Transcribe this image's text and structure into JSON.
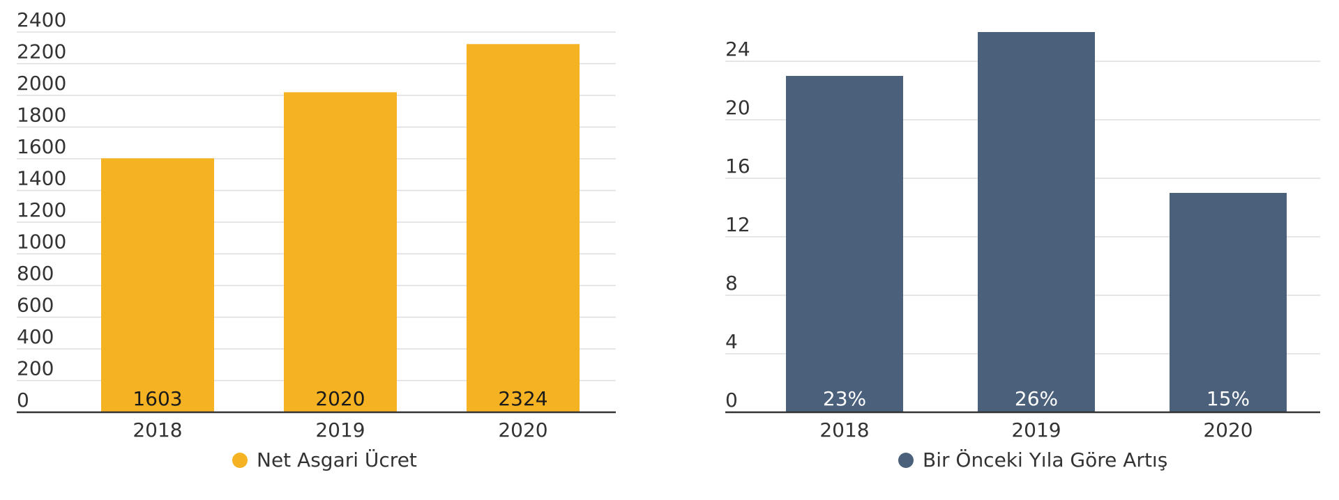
{
  "chart_data": [
    {
      "type": "bar",
      "categories": [
        "2018",
        "2019",
        "2020"
      ],
      "series": [
        {
          "name": "Net Asgari Ücret",
          "values": [
            1603,
            2020,
            2324
          ],
          "color": "#f5b222"
        }
      ],
      "data_labels": [
        "1603",
        "2020",
        "2324"
      ],
      "data_label_color": "#1a1a1a",
      "y_ticks": [
        "0",
        "200",
        "400",
        "600",
        "800",
        "1000",
        "1200",
        "1400",
        "1600",
        "1800",
        "2000",
        "2200",
        "2400"
      ],
      "ylim": [
        0,
        2400
      ],
      "grid": true,
      "legend": "bottom-center"
    },
    {
      "type": "bar",
      "categories": [
        "2018",
        "2019",
        "2020"
      ],
      "series": [
        {
          "name": "Bir Önceki Yıla Göre Artış",
          "values": [
            23,
            26,
            15
          ],
          "color": "#4b607b"
        }
      ],
      "data_labels": [
        "23%",
        "26%",
        "15%"
      ],
      "data_label_color": "#ffffff",
      "y_ticks": [
        "0",
        "4",
        "8",
        "12",
        "16",
        "20",
        "24"
      ],
      "ylim": [
        0,
        26
      ],
      "grid": true,
      "legend": "bottom-center"
    }
  ]
}
